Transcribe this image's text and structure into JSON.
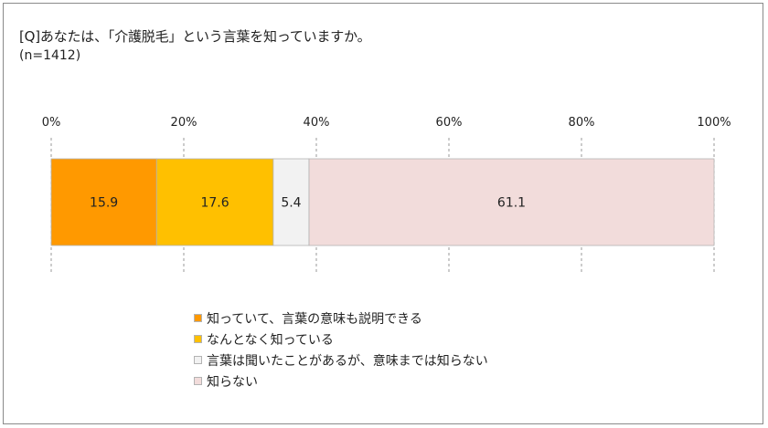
{
  "question": "[Q]あなたは、「介護脱毛」という言葉を知っていますか。",
  "sample": "(n=1412)",
  "chart_data": {
    "type": "bar",
    "orientation": "horizontal",
    "stacked": true,
    "xlim": [
      0,
      100
    ],
    "ticks": [
      "0%",
      "20%",
      "40%",
      "60%",
      "80%",
      "100%"
    ],
    "tick_values": [
      0,
      20,
      40,
      60,
      80,
      100
    ],
    "grid": true,
    "legend_position": "bottom",
    "series": [
      {
        "name": "知っていて、言葉の意味も説明できる",
        "value": 15.9,
        "label": "15.9",
        "color": "#ff9900"
      },
      {
        "name": "なんとなく知っている",
        "value": 17.6,
        "label": "17.6",
        "color": "#ffc000"
      },
      {
        "name": "言葉は聞いたことがあるが、意味までは知らない",
        "value": 5.4,
        "label": "5.4",
        "color": "#f2f2f2"
      },
      {
        "name": "知らない",
        "value": 61.1,
        "label": "61.1",
        "color": "#f2dcdb"
      }
    ]
  }
}
